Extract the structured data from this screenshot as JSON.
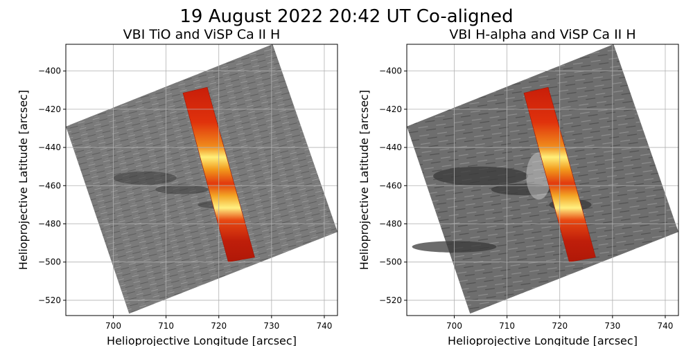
{
  "figure": {
    "suptitle": "19 August 2022 20:42 UT Co-aligned"
  },
  "chart_data": [
    {
      "type": "heatmap",
      "title": "VBI TiO and ViSP Ca II H",
      "xlabel": "Helioprojective Longitude [arcsec]",
      "ylabel": "Helioprojective Latitude [arcsec]",
      "xlim": [
        691,
        742.5
      ],
      "ylim": [
        -528,
        -386
      ],
      "xticks": [
        700,
        710,
        720,
        730,
        740
      ],
      "yticks": [
        -520,
        -500,
        -480,
        -460,
        -440,
        -420,
        -400
      ],
      "grid": true,
      "background_image": {
        "colormap": "gray",
        "corners": [
          [
            691,
            -429
          ],
          [
            730.2,
            -386
          ],
          [
            742.5,
            -484.2
          ],
          [
            703,
            -527
          ]
        ]
      },
      "overlay_slit": {
        "colormap": "hot",
        "corners": [
          [
            713.2,
            -411.5
          ],
          [
            717.8,
            -408.5
          ],
          [
            726.8,
            -497.5
          ],
          [
            721.8,
            -500
          ]
        ],
        "bright_segments_lat": [
          -450,
          -477
        ]
      }
    },
    {
      "type": "heatmap",
      "title": "VBI H-alpha and ViSP Ca II H",
      "xlabel": "Helioprojective Longitude [arcsec]",
      "ylabel": "Helioprojective Latitude [arcsec]",
      "xlim": [
        691,
        742.5
      ],
      "ylim": [
        -528,
        -386
      ],
      "xticks": [
        700,
        710,
        720,
        730,
        740
      ],
      "yticks": [
        -520,
        -500,
        -480,
        -460,
        -440,
        -420,
        -400
      ],
      "grid": true,
      "background_image": {
        "colormap": "gray",
        "corners": [
          [
            691,
            -429
          ],
          [
            730.2,
            -386
          ],
          [
            742.5,
            -484.2
          ],
          [
            703,
            -527
          ]
        ]
      },
      "overlay_slit": {
        "colormap": "hot",
        "corners": [
          [
            713.2,
            -411.5
          ],
          [
            717.8,
            -408.5
          ],
          [
            726.8,
            -497.5
          ],
          [
            721.8,
            -500
          ]
        ],
        "bright_segments_lat": [
          -450,
          -477
        ]
      }
    }
  ]
}
